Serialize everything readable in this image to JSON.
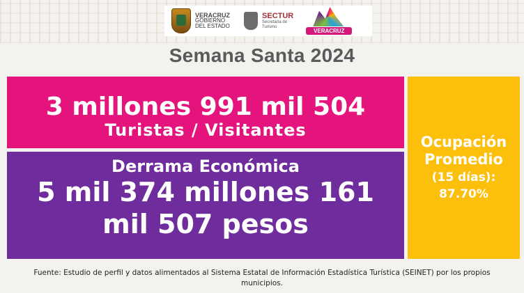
{
  "logos": {
    "gobierno_line1": "VERACRUZ",
    "gobierno_line2": "GOBIERNO",
    "gobierno_line3": "DEL ESTADO",
    "sectur_name": "SECTUR",
    "sectur_sub1": "Secretaría de",
    "sectur_sub2": "Turismo",
    "veracruz_brand": "VERACRUZ"
  },
  "title": "Semana Santa 2024",
  "visitors": {
    "amount": "3 millones 991 mil 504",
    "label": "Turistas / Visitantes"
  },
  "economic": {
    "label": "Derrama Económica",
    "amount_line1": "5 mil 374 millones 161",
    "amount_line2": "mil 507 pesos"
  },
  "occupancy": {
    "line1": "Ocupación",
    "line2": "Promedio",
    "line3": "(15 días):",
    "value": "87.70%"
  },
  "source": "Fuente: Estudio de perfil y datos alimentados al Sistema Estatal de Información Estadística Turística (SEINET) por los propios municipios.",
  "colors": {
    "magenta": "#e5147d",
    "purple": "#6e2c9c",
    "yellow": "#fbbf0c",
    "title_gray": "#5a5a5a"
  }
}
